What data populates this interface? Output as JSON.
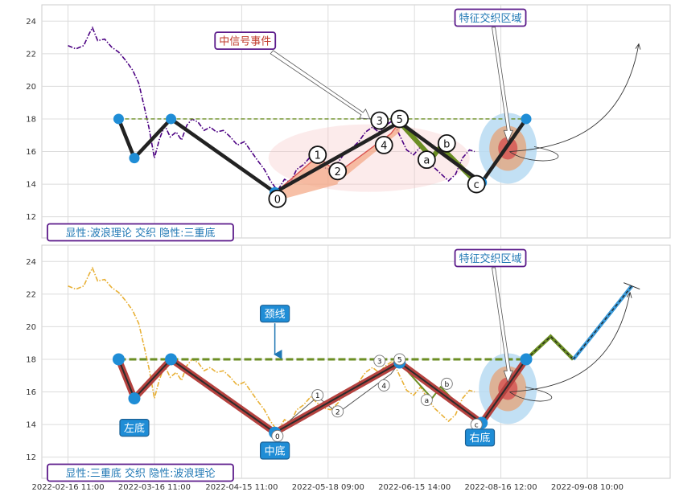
{
  "chart_data": [
    {
      "type": "line",
      "title": "",
      "xlabel": "",
      "ylabel": "",
      "ylim": [
        10.7,
        25
      ],
      "yticks": [
        12,
        14,
        16,
        18,
        20,
        22,
        24
      ],
      "grid": true,
      "series": [
        {
          "style": "dash-dot",
          "color": "#4B0082",
          "points": [
            [
              0,
              22.5
            ],
            [
              0.9,
              22.3
            ],
            [
              1.8,
              22.5
            ],
            [
              2.4,
              23.2
            ],
            [
              2.8,
              23.6
            ],
            [
              3.4,
              22.8
            ],
            [
              4.2,
              22.9
            ],
            [
              5.0,
              22.4
            ],
            [
              5.8,
              22.1
            ],
            [
              6.6,
              21.6
            ],
            [
              7.4,
              21.0
            ],
            [
              8.1,
              20.2
            ],
            [
              8.8,
              18.6
            ],
            [
              9.3,
              17.4
            ],
            [
              9.9,
              15.6
            ],
            [
              10.5,
              16.8
            ],
            [
              11.1,
              17.6
            ],
            [
              11.7,
              16.9
            ],
            [
              12.4,
              17.2
            ],
            [
              13.0,
              16.7
            ],
            [
              13.6,
              17.6
            ],
            [
              14.2,
              18.0
            ],
            [
              14.9,
              17.8
            ],
            [
              15.6,
              17.3
            ],
            [
              16.3,
              17.5
            ],
            [
              17.0,
              17.2
            ],
            [
              17.8,
              17.3
            ],
            [
              18.6,
              16.9
            ],
            [
              19.4,
              16.4
            ],
            [
              20.2,
              16.6
            ],
            [
              21.0,
              16.0
            ],
            [
              21.8,
              15.4
            ],
            [
              22.5,
              14.9
            ],
            [
              23.2,
              14.2
            ],
            [
              24.0,
              13.6
            ],
            [
              24.8,
              14.3
            ],
            [
              25.5,
              14.1
            ],
            [
              26.2,
              14.9
            ],
            [
              27.0,
              15.2
            ],
            [
              27.8,
              15.7
            ],
            [
              28.6,
              15.3
            ],
            [
              29.4,
              15.0
            ],
            [
              30.1,
              14.9
            ],
            [
              30.9,
              15.3
            ],
            [
              31.7,
              15.9
            ],
            [
              32.5,
              16.2
            ],
            [
              33.3,
              16.6
            ],
            [
              34.1,
              17.2
            ],
            [
              34.9,
              17.5
            ],
            [
              35.6,
              17.2
            ],
            [
              36.4,
              17.6
            ],
            [
              37.2,
              17.9
            ],
            [
              38.0,
              17.0
            ],
            [
              38.8,
              16.1
            ],
            [
              39.6,
              15.8
            ],
            [
              40.4,
              16.3
            ],
            [
              41.2,
              15.6
            ],
            [
              42.0,
              15.0
            ],
            [
              42.8,
              14.6
            ],
            [
              43.6,
              14.2
            ],
            [
              44.4,
              14.6
            ],
            [
              45.2,
              15.6
            ],
            [
              46.0,
              16.1
            ],
            [
              46.6,
              16.0
            ]
          ]
        }
      ],
      "zigzag": [
        [
          5.8,
          18.0
        ],
        [
          7.6,
          15.6
        ],
        [
          11.8,
          18.0
        ],
        [
          23.7,
          13.5
        ],
        [
          38.0,
          17.8
        ],
        [
          47.4,
          14.1
        ],
        [
          52.5,
          18.0
        ]
      ],
      "small_zigzag": [
        [
          24.0,
          13.6
        ],
        [
          28.6,
          15.7
        ],
        [
          30.9,
          14.7
        ],
        [
          37.0,
          17.1
        ],
        [
          38.0,
          17.8
        ],
        [
          41.7,
          15.6
        ],
        [
          42.7,
          16.3
        ],
        [
          46.6,
          14.2
        ]
      ],
      "neckline": 18.0,
      "wave_labels": [
        "0",
        "1",
        "2",
        "3",
        "4",
        "5",
        "a",
        "b",
        "c"
      ],
      "annotations": {
        "event": "中信号事件",
        "zone": "特征交织区域",
        "info": "显性:波浪理论 交织 隐性:三重底"
      }
    },
    {
      "type": "line",
      "title": "",
      "xlabel": "",
      "ylabel": "",
      "ylim": [
        10.7,
        25
      ],
      "yticks": [
        12,
        14,
        16,
        18,
        20,
        22,
        24
      ],
      "grid": true,
      "x_tick_labels": [
        "2022-02-16 11:00",
        "2022-03-16 11:00",
        "2022-04-15 11:00",
        "2022-05-18 09:00",
        "2022-06-15 14:00",
        "2022-08-16 12:00",
        "2022-09-08 10:00"
      ],
      "series": [
        {
          "style": "dash-dot",
          "color": "#E8B035",
          "points": [
            [
              0,
              22.5
            ],
            [
              0.9,
              22.3
            ],
            [
              1.8,
              22.5
            ],
            [
              2.4,
              23.2
            ],
            [
              2.8,
              23.6
            ],
            [
              3.4,
              22.8
            ],
            [
              4.2,
              22.9
            ],
            [
              5.0,
              22.4
            ],
            [
              5.8,
              22.1
            ],
            [
              6.6,
              21.6
            ],
            [
              7.4,
              21.0
            ],
            [
              8.1,
              20.2
            ],
            [
              8.8,
              18.6
            ],
            [
              9.3,
              17.4
            ],
            [
              9.9,
              15.6
            ],
            [
              10.5,
              16.8
            ],
            [
              11.1,
              17.6
            ],
            [
              11.7,
              16.9
            ],
            [
              12.4,
              17.2
            ],
            [
              13.0,
              16.7
            ],
            [
              13.6,
              17.6
            ],
            [
              14.2,
              18.0
            ],
            [
              14.9,
              17.8
            ],
            [
              15.6,
              17.3
            ],
            [
              16.3,
              17.5
            ],
            [
              17.0,
              17.2
            ],
            [
              17.8,
              17.3
            ],
            [
              18.6,
              16.9
            ],
            [
              19.4,
              16.4
            ],
            [
              20.2,
              16.6
            ],
            [
              21.0,
              16.0
            ],
            [
              21.8,
              15.4
            ],
            [
              22.5,
              14.9
            ],
            [
              23.2,
              14.2
            ],
            [
              24.0,
              13.6
            ],
            [
              24.8,
              14.3
            ],
            [
              25.5,
              14.1
            ],
            [
              26.2,
              14.9
            ],
            [
              27.0,
              15.2
            ],
            [
              27.8,
              15.7
            ],
            [
              28.6,
              15.3
            ],
            [
              29.4,
              15.0
            ],
            [
              30.1,
              14.9
            ],
            [
              30.9,
              15.3
            ],
            [
              31.7,
              15.9
            ],
            [
              32.5,
              16.2
            ],
            [
              33.3,
              16.6
            ],
            [
              34.1,
              17.2
            ],
            [
              34.9,
              17.5
            ],
            [
              35.6,
              17.2
            ],
            [
              36.4,
              17.6
            ],
            [
              37.2,
              17.9
            ],
            [
              38.0,
              17.0
            ],
            [
              38.8,
              16.1
            ],
            [
              39.6,
              15.8
            ],
            [
              40.4,
              16.3
            ],
            [
              41.2,
              15.6
            ],
            [
              42.0,
              15.0
            ],
            [
              42.8,
              14.6
            ],
            [
              43.6,
              14.2
            ],
            [
              44.4,
              14.6
            ],
            [
              45.2,
              15.6
            ],
            [
              46.0,
              16.1
            ],
            [
              46.6,
              16.0
            ]
          ]
        }
      ],
      "zigzag": [
        [
          5.8,
          18.0
        ],
        [
          7.6,
          15.6
        ],
        [
          11.8,
          18.0
        ],
        [
          23.7,
          13.5
        ],
        [
          38.0,
          17.8
        ],
        [
          47.4,
          14.1
        ],
        [
          52.5,
          18.0
        ]
      ],
      "projection": [
        [
          52.5,
          18.0
        ],
        [
          55.3,
          19.4
        ],
        [
          57.9,
          18.0
        ],
        [
          64.6,
          22.5
        ]
      ],
      "small_zigzag": [
        [
          24.0,
          13.6
        ],
        [
          28.6,
          15.7
        ],
        [
          30.9,
          14.7
        ],
        [
          37.0,
          17.1
        ],
        [
          38.0,
          17.8
        ],
        [
          41.7,
          15.6
        ],
        [
          42.7,
          16.3
        ],
        [
          46.6,
          14.2
        ]
      ],
      "neckline": 18.0,
      "wave_labels": [
        "0",
        "1",
        "2",
        "3",
        "4",
        "5",
        "a",
        "b",
        "c"
      ],
      "annotations": {
        "neck": "颈线",
        "zone": "特征交织区域",
        "left": "左底",
        "mid": "中底",
        "right": "右底",
        "info": "显性:三重底 交织 隐性:波浪理论"
      }
    }
  ]
}
